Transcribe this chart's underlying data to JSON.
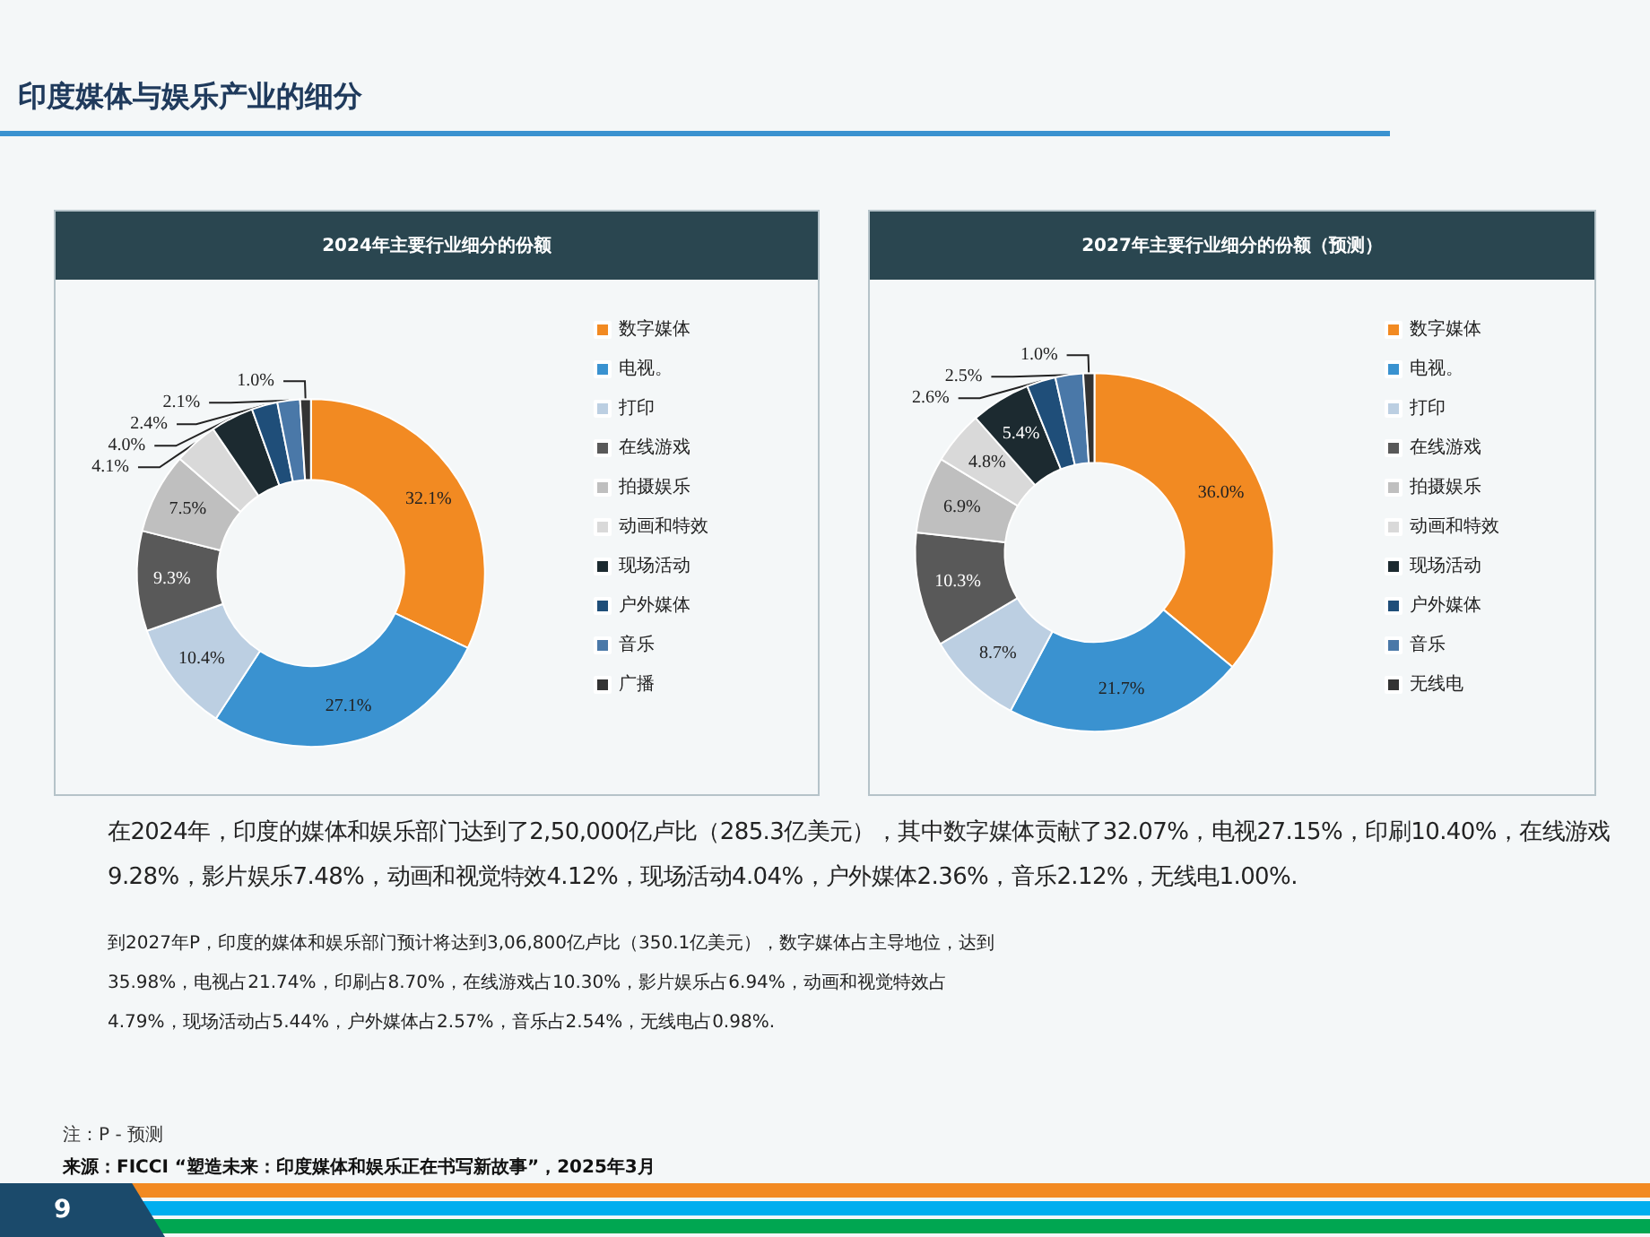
{
  "chart_data": [
    {
      "type": "donut",
      "title": "2024年主要行业细分的份额",
      "categories": [
        "数字媒体",
        "电视。",
        "打印",
        "在线游戏",
        "拍摄娱乐",
        "动画和特效",
        "现场活动",
        "户外媒体",
        "音乐",
        "广播"
      ],
      "values": [
        32.1,
        27.1,
        10.4,
        9.3,
        7.5,
        4.1,
        4.0,
        2.4,
        2.1,
        1.0
      ],
      "value_labels": [
        "32.1%",
        "27.1%",
        "10.4%",
        "9.3%",
        "7.5%",
        "4.1%",
        "4.0%",
        "2.4%",
        "2.1%",
        "1.0%"
      ],
      "colors": [
        "#f28a22",
        "#3a92d0",
        "#bccfe2",
        "#595959",
        "#bfbfbf",
        "#d9d9d9",
        "#1c2a30",
        "#1f4e79",
        "#4a78a8",
        "#333333"
      ],
      "legend": "right",
      "annotations": [
        "印度媒体与娱乐产业的细分",
        "在2024年，印度的媒体和娱乐部门达到了2,50,000亿卢比（285.3亿美元），其中数字媒体贡献了32.07%，电视27.15%，印刷10.40%，在线游戏9.28%，影片娱乐7.48%，动画和视觉特效4.12%，现场活动4.04%，户外媒体2.36%，音乐2.12%，无线电1.00%."
      ]
    },
    {
      "type": "donut",
      "title": "2027年主要行业细分的份额（预测）",
      "categories": [
        "数字媒体",
        "电视。",
        "打印",
        "在线游戏",
        "拍摄娱乐",
        "动画和特效",
        "现场活动",
        "户外媒体",
        "音乐",
        "无线电"
      ],
      "values": [
        36.0,
        21.7,
        8.7,
        10.3,
        6.9,
        4.8,
        5.4,
        2.6,
        2.5,
        1.0
      ],
      "value_labels": [
        "36.0%",
        "21.7%",
        "8.7%",
        "10.3%",
        "6.9%",
        "4.8%",
        "5.4%",
        "2.6%",
        "2.5%",
        "1.0%"
      ],
      "colors": [
        "#f28a22",
        "#3a92d0",
        "#bccfe2",
        "#595959",
        "#bfbfbf",
        "#d9d9d9",
        "#1c2a30",
        "#1f4e79",
        "#4a78a8",
        "#333333"
      ],
      "legend": "right",
      "annotations": [
        "到2027年P，印度的媒体和娱乐部门预计将达到3,06,800亿卢比（350.1亿美元），数字媒体占主导地位，达到35.98%，电视占21.74%，印刷占8.70%，在线游戏占10.30%，影片娱乐占6.94%，动画和视觉特效占4.79%，现场活动占5.44%，户外媒体占2.57%，音乐占2.54%，无线电占0.98%.",
        "注：P - 预测",
        "来源：FICCI “塑造未来：印度媒体和娱乐正在书写新故事”，2025年3月",
        "9"
      ]
    }
  ]
}
